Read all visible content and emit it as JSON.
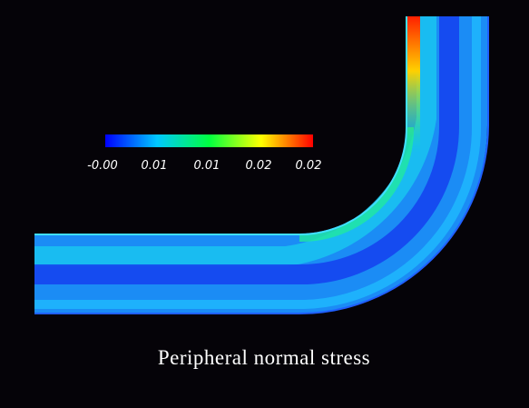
{
  "colorbar": {
    "tick_labels": [
      "-0.00",
      "0.01",
      "0.01",
      "0.02",
      "0.02"
    ]
  },
  "caption": "Peripheral normal stress"
}
